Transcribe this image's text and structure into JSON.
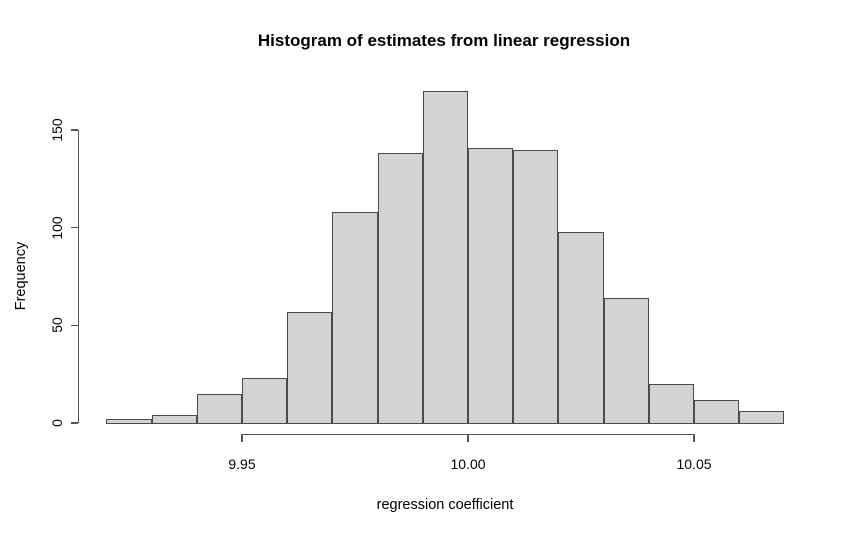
{
  "chart_data": {
    "type": "bar",
    "subtype": "histogram",
    "title": "Histogram of estimates from linear regression",
    "xlabel": "regression coefficient",
    "ylabel": "Frequency",
    "bin_edges": [
      9.92,
      9.93,
      9.94,
      9.95,
      9.96,
      9.97,
      9.98,
      9.99,
      10.0,
      10.01,
      10.02,
      10.03,
      10.04,
      10.05,
      10.06,
      10.07
    ],
    "counts": [
      2,
      4,
      15,
      23,
      57,
      108,
      138,
      170,
      141,
      140,
      98,
      64,
      20,
      12,
      6
    ],
    "x_ticks": [
      {
        "value": 9.95,
        "label": "9.95"
      },
      {
        "value": 10.0,
        "label": "10.00"
      },
      {
        "value": 10.05,
        "label": "10.05"
      }
    ],
    "y_ticks": [
      {
        "value": 0,
        "label": "0"
      },
      {
        "value": 50,
        "label": "50"
      },
      {
        "value": 100,
        "label": "100"
      },
      {
        "value": 150,
        "label": "150"
      }
    ],
    "xlim": [
      9.92,
      10.07
    ],
    "ylim": [
      0,
      170
    ],
    "grid": "off",
    "legend": "none",
    "colors": {
      "bar_fill": "#d3d3d3",
      "bar_border": "#4a4a4a",
      "axis": "#555555",
      "text": "#000000",
      "background": "#ffffff"
    }
  }
}
